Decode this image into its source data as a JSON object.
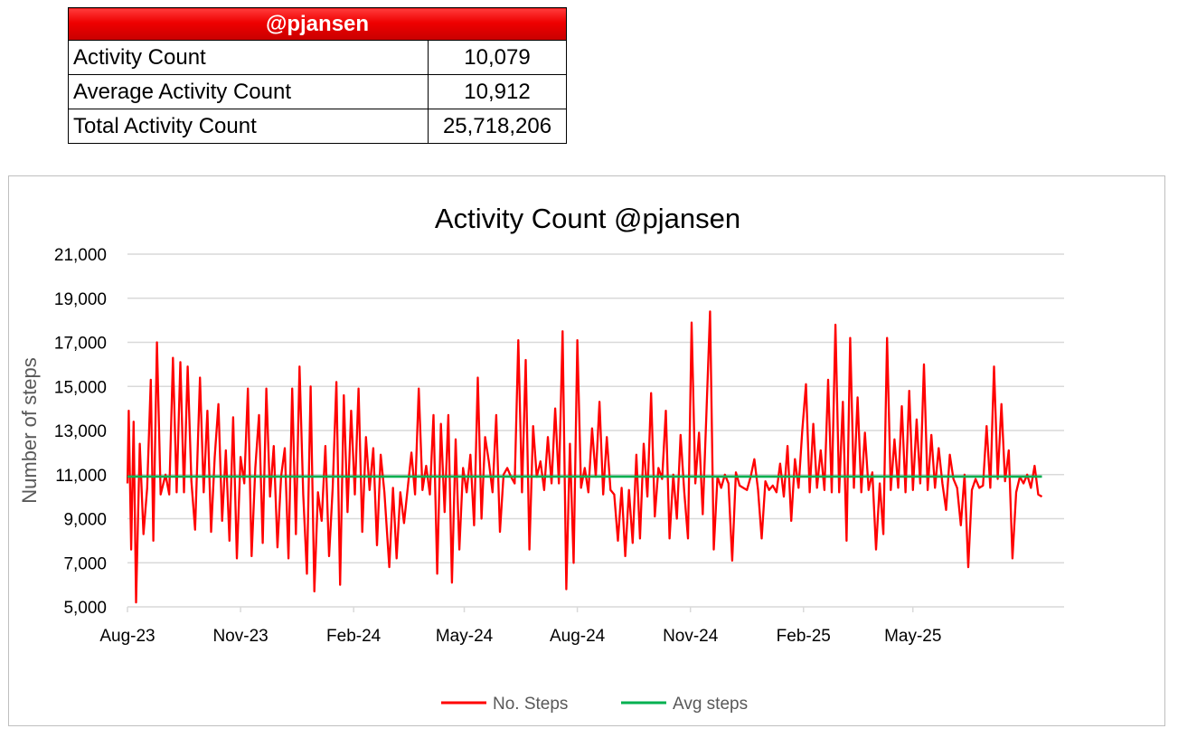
{
  "stats": {
    "header": "@pjansen",
    "rows": [
      {
        "label": "Activity Count",
        "value": "10,079"
      },
      {
        "label": "Average Activity Count",
        "value": "10,912"
      },
      {
        "label": "Total Activity Count",
        "value": "25,718,206"
      }
    ]
  },
  "colors": {
    "header_red": "#ee0000",
    "steps_line": "#ff0000",
    "avg_line": "#00b050",
    "grid": "#d9d9d9"
  },
  "chart_data": {
    "type": "line",
    "title": "Activity Count @pjansen",
    "ylabel": "Number of steps",
    "xlabel": "",
    "ylim": [
      5000,
      21000
    ],
    "yticks": [
      5000,
      7000,
      9000,
      11000,
      13000,
      15000,
      17000,
      19000,
      21000
    ],
    "ytick_labels": [
      "5,000",
      "7,000",
      "9,000",
      "11,000",
      "13,000",
      "15,000",
      "17,000",
      "19,000",
      "21,000"
    ],
    "xlim": [
      "2023-08-01",
      "2025-09-01"
    ],
    "xticks": [
      "2023-08-01",
      "2023-11-01",
      "2024-02-01",
      "2024-05-01",
      "2024-08-01",
      "2024-11-01",
      "2025-02-01",
      "2025-05-01"
    ],
    "xtick_labels": [
      "Aug-23",
      "Nov-23",
      "Feb-24",
      "May-24",
      "Aug-24",
      "Nov-24",
      "Feb-25",
      "May-25"
    ],
    "grid": true,
    "legend_position": "bottom",
    "series": [
      {
        "name": "No. Steps",
        "color": "#ff0000",
        "points": [
          [
            "2023-08-01",
            10600
          ],
          [
            "2023-08-02",
            13900
          ],
          [
            "2023-08-04",
            7600
          ],
          [
            "2023-08-06",
            13400
          ],
          [
            "2023-08-08",
            5200
          ],
          [
            "2023-08-11",
            12400
          ],
          [
            "2023-08-14",
            8300
          ],
          [
            "2023-08-17",
            10400
          ],
          [
            "2023-08-20",
            15300
          ],
          [
            "2023-08-22",
            8000
          ],
          [
            "2023-08-25",
            17000
          ],
          [
            "2023-08-28",
            10100
          ],
          [
            "2023-09-01",
            11000
          ],
          [
            "2023-09-04",
            10100
          ],
          [
            "2023-09-07",
            16300
          ],
          [
            "2023-09-10",
            10200
          ],
          [
            "2023-09-13",
            16100
          ],
          [
            "2023-09-16",
            10200
          ],
          [
            "2023-09-19",
            15900
          ],
          [
            "2023-09-22",
            10700
          ],
          [
            "2023-09-25",
            8500
          ],
          [
            "2023-09-29",
            15400
          ],
          [
            "2023-10-02",
            10200
          ],
          [
            "2023-10-05",
            13900
          ],
          [
            "2023-10-08",
            8400
          ],
          [
            "2023-10-11",
            11800
          ],
          [
            "2023-10-14",
            14200
          ],
          [
            "2023-10-17",
            8900
          ],
          [
            "2023-10-20",
            12100
          ],
          [
            "2023-10-23",
            8000
          ],
          [
            "2023-10-26",
            13600
          ],
          [
            "2023-10-29",
            7200
          ],
          [
            "2023-11-01",
            11800
          ],
          [
            "2023-11-04",
            10600
          ],
          [
            "2023-11-07",
            14900
          ],
          [
            "2023-11-10",
            7300
          ],
          [
            "2023-11-13",
            11300
          ],
          [
            "2023-11-16",
            13700
          ],
          [
            "2023-11-19",
            7900
          ],
          [
            "2023-11-22",
            14900
          ],
          [
            "2023-11-25",
            10000
          ],
          [
            "2023-11-28",
            12300
          ],
          [
            "2023-12-01",
            7700
          ],
          [
            "2023-12-04",
            10900
          ],
          [
            "2023-12-07",
            12200
          ],
          [
            "2023-12-10",
            7200
          ],
          [
            "2023-12-13",
            14900
          ],
          [
            "2023-12-16",
            8300
          ],
          [
            "2023-12-19",
            15900
          ],
          [
            "2023-12-22",
            10100
          ],
          [
            "2023-12-25",
            6500
          ],
          [
            "2023-12-28",
            15000
          ],
          [
            "2023-12-31",
            5700
          ],
          [
            "2024-01-03",
            10200
          ],
          [
            "2024-01-06",
            8900
          ],
          [
            "2024-01-09",
            12300
          ],
          [
            "2024-01-12",
            7300
          ],
          [
            "2024-01-15",
            10400
          ],
          [
            "2024-01-18",
            15200
          ],
          [
            "2024-01-21",
            6000
          ],
          [
            "2024-01-24",
            14600
          ],
          [
            "2024-01-27",
            9300
          ],
          [
            "2024-01-30",
            13900
          ],
          [
            "2024-02-02",
            10100
          ],
          [
            "2024-02-05",
            14900
          ],
          [
            "2024-02-08",
            8400
          ],
          [
            "2024-02-11",
            12700
          ],
          [
            "2024-02-14",
            10300
          ],
          [
            "2024-02-17",
            12200
          ],
          [
            "2024-02-20",
            7800
          ],
          [
            "2024-02-23",
            11900
          ],
          [
            "2024-02-26",
            10200
          ],
          [
            "2024-03-01",
            6800
          ],
          [
            "2024-03-04",
            10400
          ],
          [
            "2024-03-07",
            7200
          ],
          [
            "2024-03-10",
            10200
          ],
          [
            "2024-03-13",
            8800
          ],
          [
            "2024-03-16",
            10400
          ],
          [
            "2024-03-19",
            12000
          ],
          [
            "2024-03-22",
            10100
          ],
          [
            "2024-03-25",
            14900
          ],
          [
            "2024-03-28",
            10300
          ],
          [
            "2024-03-31",
            11400
          ],
          [
            "2024-04-03",
            10100
          ],
          [
            "2024-04-06",
            13700
          ],
          [
            "2024-04-09",
            6500
          ],
          [
            "2024-04-12",
            13300
          ],
          [
            "2024-04-15",
            9300
          ],
          [
            "2024-04-18",
            13700
          ],
          [
            "2024-04-21",
            6100
          ],
          [
            "2024-04-24",
            12600
          ],
          [
            "2024-04-27",
            7600
          ],
          [
            "2024-04-30",
            11300
          ],
          [
            "2024-05-03",
            10200
          ],
          [
            "2024-05-06",
            11900
          ],
          [
            "2024-05-09",
            8700
          ],
          [
            "2024-05-12",
            15400
          ],
          [
            "2024-05-15",
            9000
          ],
          [
            "2024-05-18",
            12700
          ],
          [
            "2024-05-21",
            11600
          ],
          [
            "2024-05-24",
            10200
          ],
          [
            "2024-05-27",
            13700
          ],
          [
            "2024-05-30",
            8400
          ],
          [
            "2024-06-02",
            11000
          ],
          [
            "2024-06-05",
            11300
          ],
          [
            "2024-06-08",
            10900
          ],
          [
            "2024-06-11",
            10600
          ],
          [
            "2024-06-14",
            17100
          ],
          [
            "2024-06-17",
            10200
          ],
          [
            "2024-06-20",
            16200
          ],
          [
            "2024-06-23",
            7600
          ],
          [
            "2024-06-26",
            13200
          ],
          [
            "2024-06-29",
            10900
          ],
          [
            "2024-07-02",
            11600
          ],
          [
            "2024-07-05",
            10300
          ],
          [
            "2024-07-08",
            12700
          ],
          [
            "2024-07-11",
            10600
          ],
          [
            "2024-07-14",
            14000
          ],
          [
            "2024-07-17",
            10600
          ],
          [
            "2024-07-20",
            17500
          ],
          [
            "2024-07-23",
            5800
          ],
          [
            "2024-07-26",
            12400
          ],
          [
            "2024-07-29",
            7000
          ],
          [
            "2024-08-01",
            17100
          ],
          [
            "2024-08-04",
            10400
          ],
          [
            "2024-08-07",
            11300
          ],
          [
            "2024-08-10",
            10200
          ],
          [
            "2024-08-13",
            13100
          ],
          [
            "2024-08-16",
            10900
          ],
          [
            "2024-08-19",
            14300
          ],
          [
            "2024-08-22",
            10100
          ],
          [
            "2024-08-25",
            12700
          ],
          [
            "2024-08-28",
            10300
          ],
          [
            "2024-08-31",
            10100
          ],
          [
            "2024-09-03",
            8000
          ],
          [
            "2024-09-06",
            10400
          ],
          [
            "2024-09-09",
            7300
          ],
          [
            "2024-09-12",
            10300
          ],
          [
            "2024-09-15",
            7900
          ],
          [
            "2024-09-18",
            11900
          ],
          [
            "2024-09-21",
            8100
          ],
          [
            "2024-09-24",
            12400
          ],
          [
            "2024-09-27",
            10000
          ],
          [
            "2024-09-30",
            14700
          ],
          [
            "2024-10-03",
            9100
          ],
          [
            "2024-10-06",
            11300
          ],
          [
            "2024-10-09",
            10800
          ],
          [
            "2024-10-12",
            13900
          ],
          [
            "2024-10-15",
            8100
          ],
          [
            "2024-10-18",
            11000
          ],
          [
            "2024-10-21",
            9000
          ],
          [
            "2024-10-24",
            12800
          ],
          [
            "2024-10-27",
            10200
          ],
          [
            "2024-10-30",
            8100
          ],
          [
            "2024-11-02",
            17900
          ],
          [
            "2024-11-05",
            10600
          ],
          [
            "2024-11-08",
            12900
          ],
          [
            "2024-11-11",
            9200
          ],
          [
            "2024-11-14",
            13800
          ],
          [
            "2024-11-17",
            18400
          ],
          [
            "2024-11-20",
            7600
          ],
          [
            "2024-11-23",
            10900
          ],
          [
            "2024-11-26",
            10400
          ],
          [
            "2024-11-29",
            11000
          ],
          [
            "2024-12-02",
            10600
          ],
          [
            "2024-12-05",
            7100
          ],
          [
            "2024-12-08",
            11100
          ],
          [
            "2024-12-11",
            10500
          ],
          [
            "2024-12-14",
            10400
          ],
          [
            "2024-12-17",
            10300
          ],
          [
            "2024-12-20",
            10900
          ],
          [
            "2024-12-23",
            11700
          ],
          [
            "2024-12-26",
            10300
          ],
          [
            "2024-12-29",
            8100
          ],
          [
            "2025-01-01",
            10700
          ],
          [
            "2025-01-04",
            10300
          ],
          [
            "2025-01-07",
            10500
          ],
          [
            "2025-01-10",
            10200
          ],
          [
            "2025-01-13",
            11500
          ],
          [
            "2025-01-16",
            10000
          ],
          [
            "2025-01-19",
            12300
          ],
          [
            "2025-01-22",
            8900
          ],
          [
            "2025-01-25",
            11700
          ],
          [
            "2025-01-28",
            10400
          ],
          [
            "2025-01-31",
            13000
          ],
          [
            "2025-02-03",
            15100
          ],
          [
            "2025-02-06",
            10200
          ],
          [
            "2025-02-09",
            13300
          ],
          [
            "2025-02-12",
            10400
          ],
          [
            "2025-02-15",
            12100
          ],
          [
            "2025-02-18",
            10300
          ],
          [
            "2025-02-21",
            15300
          ],
          [
            "2025-02-24",
            10200
          ],
          [
            "2025-02-27",
            17800
          ],
          [
            "2025-03-02",
            10200
          ],
          [
            "2025-03-05",
            14300
          ],
          [
            "2025-03-08",
            8000
          ],
          [
            "2025-03-11",
            17200
          ],
          [
            "2025-03-14",
            10400
          ],
          [
            "2025-03-17",
            14500
          ],
          [
            "2025-03-20",
            10200
          ],
          [
            "2025-03-23",
            12900
          ],
          [
            "2025-03-26",
            10300
          ],
          [
            "2025-03-29",
            11100
          ],
          [
            "2025-04-01",
            7600
          ],
          [
            "2025-04-04",
            10600
          ],
          [
            "2025-04-07",
            8300
          ],
          [
            "2025-04-10",
            17200
          ],
          [
            "2025-04-13",
            10300
          ],
          [
            "2025-04-16",
            12600
          ],
          [
            "2025-04-19",
            10400
          ],
          [
            "2025-04-22",
            14100
          ],
          [
            "2025-04-25",
            10200
          ],
          [
            "2025-04-28",
            14800
          ],
          [
            "2025-05-01",
            10300
          ],
          [
            "2025-05-04",
            13500
          ],
          [
            "2025-05-07",
            10600
          ],
          [
            "2025-05-10",
            16000
          ],
          [
            "2025-05-13",
            10300
          ],
          [
            "2025-05-16",
            12800
          ],
          [
            "2025-05-19",
            10400
          ],
          [
            "2025-05-22",
            12200
          ],
          [
            "2025-05-25",
            10600
          ],
          [
            "2025-05-28",
            9400
          ],
          [
            "2025-05-31",
            11900
          ],
          [
            "2025-06-03",
            10800
          ],
          [
            "2025-06-06",
            10400
          ],
          [
            "2025-06-09",
            8700
          ],
          [
            "2025-06-12",
            11000
          ],
          [
            "2025-06-15",
            6800
          ],
          [
            "2025-06-18",
            10300
          ],
          [
            "2025-06-21",
            10800
          ],
          [
            "2025-06-24",
            10400
          ],
          [
            "2025-06-27",
            10500
          ],
          [
            "2025-06-30",
            13200
          ],
          [
            "2025-07-03",
            10400
          ],
          [
            "2025-07-06",
            15900
          ],
          [
            "2025-07-09",
            10800
          ],
          [
            "2025-07-12",
            14200
          ],
          [
            "2025-07-15",
            10700
          ],
          [
            "2025-07-18",
            12100
          ],
          [
            "2025-07-21",
            7200
          ],
          [
            "2025-07-24",
            10200
          ],
          [
            "2025-07-27",
            10900
          ],
          [
            "2025-07-30",
            10600
          ],
          [
            "2025-08-02",
            11000
          ],
          [
            "2025-08-05",
            10400
          ],
          [
            "2025-08-08",
            11400
          ],
          [
            "2025-08-11",
            10100
          ],
          [
            "2025-08-14",
            10000
          ]
        ]
      },
      {
        "name": "Avg steps",
        "color": "#00b050",
        "points": [
          [
            "2023-08-01",
            10912
          ],
          [
            "2025-08-14",
            10912
          ]
        ]
      }
    ]
  }
}
